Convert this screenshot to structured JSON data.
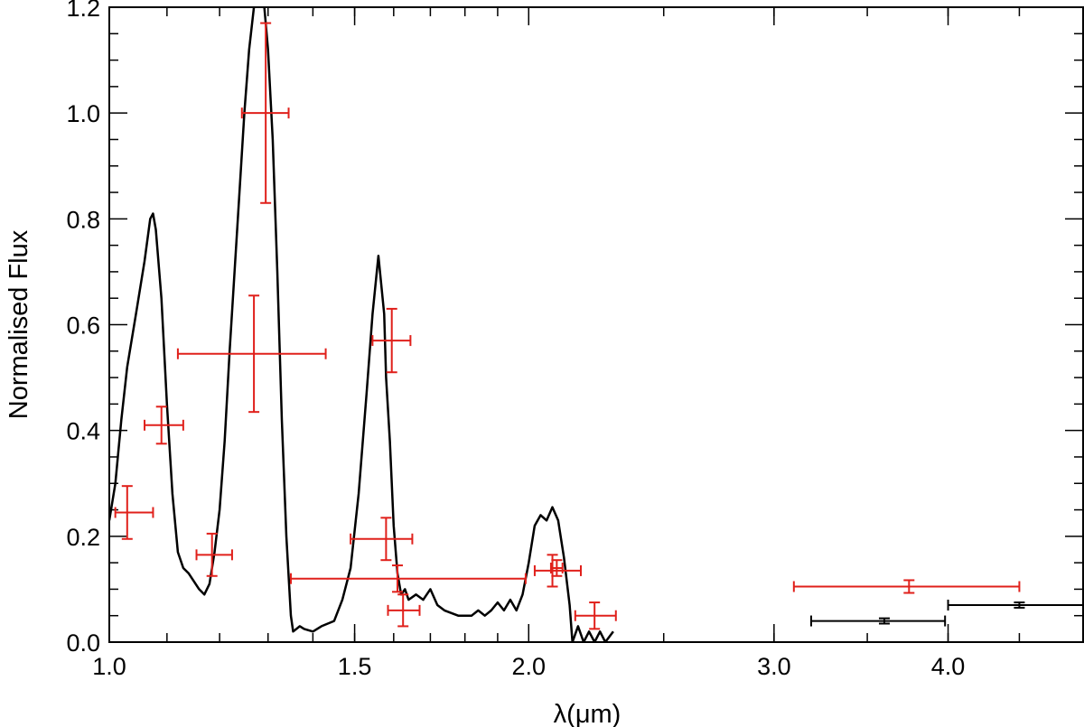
{
  "chart_data": {
    "type": "scatter",
    "title": "",
    "xlabel": "λ(μm)",
    "ylabel": "Normalised Flux",
    "xscale": "log",
    "xlim": [
      1.0,
      5.0
    ],
    "ylim": [
      0.0,
      1.2
    ],
    "grid": false,
    "x_ticks": [
      {
        "value": 1.0,
        "label": "1.0"
      },
      {
        "value": 1.5,
        "label": "1.5"
      },
      {
        "value": 2.0,
        "label": "2.0"
      },
      {
        "value": 3.0,
        "label": "3.0"
      },
      {
        "value": 4.0,
        "label": "4.0"
      }
    ],
    "y_ticks": [
      {
        "value": 0.0,
        "label": "0.0"
      },
      {
        "value": 0.2,
        "label": "0.2"
      },
      {
        "value": 0.4,
        "label": "0.4"
      },
      {
        "value": 0.6,
        "label": "0.6"
      },
      {
        "value": 0.8,
        "label": "0.8"
      },
      {
        "value": 1.0,
        "label": "1.0"
      },
      {
        "value": 1.2,
        "label": "1.2"
      }
    ],
    "model_spectrum": {
      "color": "#000000",
      "points": [
        [
          1.0,
          0.23
        ],
        [
          1.01,
          0.3
        ],
        [
          1.02,
          0.42
        ],
        [
          1.03,
          0.52
        ],
        [
          1.045,
          0.62
        ],
        [
          1.06,
          0.72
        ],
        [
          1.07,
          0.8
        ],
        [
          1.075,
          0.81
        ],
        [
          1.08,
          0.78
        ],
        [
          1.09,
          0.65
        ],
        [
          1.1,
          0.45
        ],
        [
          1.11,
          0.28
        ],
        [
          1.12,
          0.17
        ],
        [
          1.13,
          0.14
        ],
        [
          1.14,
          0.13
        ],
        [
          1.16,
          0.1
        ],
        [
          1.17,
          0.09
        ],
        [
          1.18,
          0.11
        ],
        [
          1.19,
          0.17
        ],
        [
          1.2,
          0.25
        ],
        [
          1.21,
          0.38
        ],
        [
          1.22,
          0.55
        ],
        [
          1.24,
          0.85
        ],
        [
          1.25,
          1.0
        ],
        [
          1.26,
          1.12
        ],
        [
          1.27,
          1.2
        ],
        [
          1.28,
          1.22
        ],
        [
          1.29,
          1.22
        ],
        [
          1.3,
          1.12
        ],
        [
          1.31,
          0.95
        ],
        [
          1.32,
          0.7
        ],
        [
          1.33,
          0.42
        ],
        [
          1.34,
          0.2
        ],
        [
          1.35,
          0.05
        ],
        [
          1.355,
          0.02
        ],
        [
          1.37,
          0.03
        ],
        [
          1.38,
          0.025
        ],
        [
          1.4,
          0.02
        ],
        [
          1.42,
          0.03
        ],
        [
          1.45,
          0.04
        ],
        [
          1.47,
          0.08
        ],
        [
          1.49,
          0.14
        ],
        [
          1.51,
          0.28
        ],
        [
          1.53,
          0.47
        ],
        [
          1.545,
          0.62
        ],
        [
          1.56,
          0.73
        ],
        [
          1.575,
          0.62
        ],
        [
          1.58,
          0.5
        ],
        [
          1.59,
          0.38
        ],
        [
          1.6,
          0.22
        ],
        [
          1.61,
          0.13
        ],
        [
          1.62,
          0.09
        ],
        [
          1.63,
          0.1
        ],
        [
          1.64,
          0.08
        ],
        [
          1.66,
          0.09
        ],
        [
          1.68,
          0.08
        ],
        [
          1.7,
          0.1
        ],
        [
          1.72,
          0.07
        ],
        [
          1.74,
          0.06
        ],
        [
          1.76,
          0.055
        ],
        [
          1.78,
          0.05
        ],
        [
          1.8,
          0.05
        ],
        [
          1.82,
          0.05
        ],
        [
          1.84,
          0.06
        ],
        [
          1.86,
          0.05
        ],
        [
          1.88,
          0.06
        ],
        [
          1.9,
          0.075
        ],
        [
          1.92,
          0.06
        ],
        [
          1.94,
          0.08
        ],
        [
          1.96,
          0.06
        ],
        [
          1.98,
          0.09
        ],
        [
          2.0,
          0.15
        ],
        [
          2.02,
          0.22
        ],
        [
          2.04,
          0.24
        ],
        [
          2.06,
          0.23
        ],
        [
          2.08,
          0.255
        ],
        [
          2.1,
          0.23
        ],
        [
          2.12,
          0.16
        ],
        [
          2.14,
          0.07
        ],
        [
          2.15,
          0.0
        ],
        [
          2.17,
          0.03
        ],
        [
          2.19,
          0.0
        ],
        [
          2.21,
          0.02
        ],
        [
          2.23,
          0.0
        ],
        [
          2.25,
          0.02
        ],
        [
          2.27,
          0.0
        ],
        [
          2.3,
          0.02
        ]
      ]
    },
    "series": [
      {
        "color": "#e0201b",
        "points": [
          {
            "x": 1.03,
            "y": 0.245,
            "xerr": [
              0.02,
              0.045
            ],
            "yerr": 0.05
          },
          {
            "x": 1.09,
            "y": 0.41,
            "xerr": [
              0.03,
              0.04
            ],
            "yerr": 0.035
          },
          {
            "x": 1.185,
            "y": 0.165,
            "xerr": [
              0.03,
              0.04
            ],
            "yerr": 0.04
          },
          {
            "x": 1.27,
            "y": 0.545,
            "xerr": [
              0.15,
              0.16
            ],
            "yerr": 0.11
          },
          {
            "x": 1.295,
            "y": 1.0,
            "xerr": [
              0.05,
              0.05
            ],
            "yerr": 0.17
          },
          {
            "x": 1.58,
            "y": 0.195,
            "xerr": [
              0.09,
              0.07
            ],
            "yerr": 0.04
          },
          {
            "x": 1.61,
            "y": 0.12,
            "xerr": [
              0.26,
              0.38
            ],
            "yerr": 0.025
          },
          {
            "x": 1.595,
            "y": 0.57,
            "xerr": [
              0.05,
              0.05
            ],
            "yerr": 0.06
          },
          {
            "x": 1.625,
            "y": 0.06,
            "xerr": [
              0.04,
              0.045
            ],
            "yerr": 0.03
          },
          {
            "x": 2.08,
            "y": 0.135,
            "xerr": [
              0.06,
              0.1
            ],
            "yerr": 0.03
          },
          {
            "x": 2.095,
            "y": 0.14,
            "xerr": [
              0.02,
              0.02
            ],
            "yerr": 0.015
          },
          {
            "x": 2.23,
            "y": 0.05,
            "xerr": [
              0.07,
              0.08
            ],
            "yerr": 0.025
          },
          {
            "x": 3.75,
            "y": 0.105,
            "xerr": [
              0.65,
              0.75
            ],
            "yerr": 0.012
          }
        ]
      },
      {
        "color": "#000000",
        "points": [
          {
            "x": 3.6,
            "y": 0.04,
            "xerr": [
              0.41,
              0.38
            ],
            "yerr": 0.005
          },
          {
            "x": 4.5,
            "y": 0.07,
            "xerr": [
              0.5,
              0.55
            ],
            "yerr": 0.005
          }
        ]
      }
    ]
  }
}
